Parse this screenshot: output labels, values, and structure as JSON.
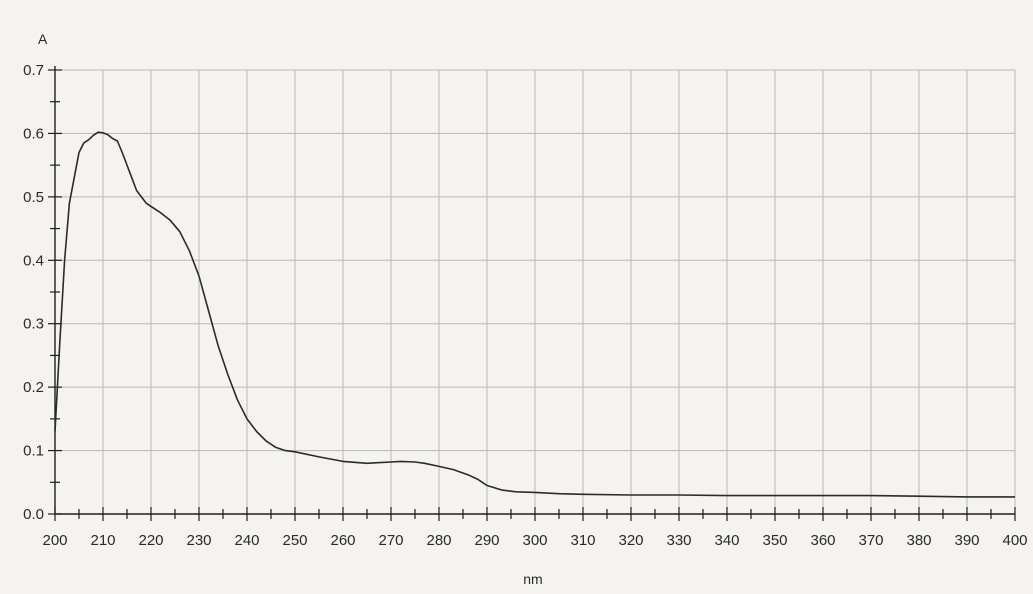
{
  "chart_data": {
    "type": "line",
    "title": "",
    "xlabel": "nm",
    "ylabel": "A",
    "xlim": [
      200,
      400
    ],
    "ylim": [
      0.0,
      0.7
    ],
    "x_ticks": [
      "200",
      "210",
      "220",
      "230",
      "240",
      "250",
      "260",
      "270",
      "280",
      "290",
      "300",
      "310",
      "320",
      "330",
      "340",
      "350",
      "360",
      "370",
      "380",
      "390",
      "400"
    ],
    "y_ticks": [
      "0.0",
      "0.1",
      "0.2",
      "0.3",
      "0.4",
      "0.5",
      "0.6",
      "0.7"
    ],
    "grid": true,
    "series": [
      {
        "x": [
          200,
          201,
          202,
          203,
          204,
          205,
          206,
          207,
          208,
          209,
          210,
          211,
          212,
          213,
          214,
          215,
          216,
          217,
          218,
          219,
          220,
          222,
          224,
          226,
          228,
          230,
          232,
          234,
          236,
          238,
          240,
          242,
          244,
          246,
          248,
          250,
          255,
          260,
          265,
          270,
          272,
          275,
          277,
          280,
          283,
          286,
          288,
          290,
          293,
          296,
          300,
          305,
          310,
          320,
          330,
          340,
          350,
          360,
          370,
          380,
          390,
          400
        ],
        "y": [
          0.13,
          0.27,
          0.4,
          0.49,
          0.53,
          0.57,
          0.585,
          0.59,
          0.597,
          0.602,
          0.601,
          0.598,
          0.592,
          0.588,
          0.57,
          0.55,
          0.53,
          0.51,
          0.5,
          0.49,
          0.485,
          0.475,
          0.463,
          0.445,
          0.415,
          0.375,
          0.32,
          0.265,
          0.22,
          0.18,
          0.15,
          0.13,
          0.115,
          0.105,
          0.1,
          0.098,
          0.09,
          0.083,
          0.08,
          0.082,
          0.083,
          0.082,
          0.08,
          0.075,
          0.07,
          0.062,
          0.055,
          0.045,
          0.038,
          0.035,
          0.034,
          0.032,
          0.031,
          0.03,
          0.03,
          0.029,
          0.029,
          0.029,
          0.029,
          0.028,
          0.027,
          0.027
        ]
      }
    ]
  },
  "colors": {
    "background": "#f4f3f1",
    "grid": "#b9b9b9",
    "axis": "#1e1e1e",
    "line": "#2b2b2b"
  }
}
